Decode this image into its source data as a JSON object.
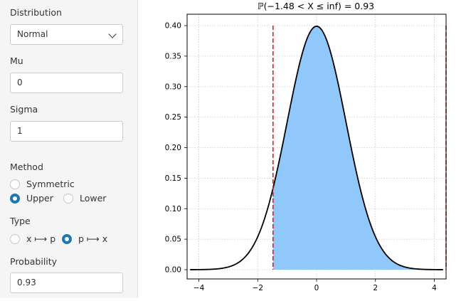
{
  "sidebar": {
    "distribution": {
      "label": "Distribution",
      "value": "Normal"
    },
    "mu": {
      "label": "Mu",
      "value": "0"
    },
    "sigma": {
      "label": "Sigma",
      "value": "1"
    },
    "method": {
      "label": "Method",
      "options": [
        "Symmetric",
        "Upper",
        "Lower"
      ],
      "selected": "Upper"
    },
    "type": {
      "label": "Type",
      "options": [
        "x ⟼ p",
        "p ⟼ x"
      ],
      "selected": "p ⟼ x"
    },
    "probability": {
      "label": "Probability",
      "value": "0.93"
    }
  },
  "colors": {
    "accent": "#1f77b4",
    "fill": "#90c8fb",
    "curve": "#000000",
    "cutoff": "#e31a1c"
  },
  "chart_data": {
    "type": "area",
    "title": "ℙ(−1.48 < X ≤ inf) = 0.93",
    "distribution": "normal",
    "mu": 0,
    "sigma": 1,
    "xlim": [
      -4.4,
      4.4
    ],
    "ylim": [
      0,
      0.4
    ],
    "x_ticks": [
      -4,
      -2,
      0,
      2,
      4
    ],
    "x_tick_labels": [
      "−4",
      "−2",
      "0",
      "2",
      "4"
    ],
    "y_ticks": [
      0.0,
      0.05,
      0.1,
      0.15,
      0.2,
      0.25,
      0.3,
      0.35,
      0.4
    ],
    "y_tick_labels": [
      "0.00",
      "0.05",
      "0.10",
      "0.15",
      "0.20",
      "0.25",
      "0.30",
      "0.35",
      "0.40"
    ],
    "shaded_from": -1.48,
    "shaded_to": 4.4,
    "cutoff_lines": [
      -1.48,
      4.4
    ],
    "grid": true
  }
}
